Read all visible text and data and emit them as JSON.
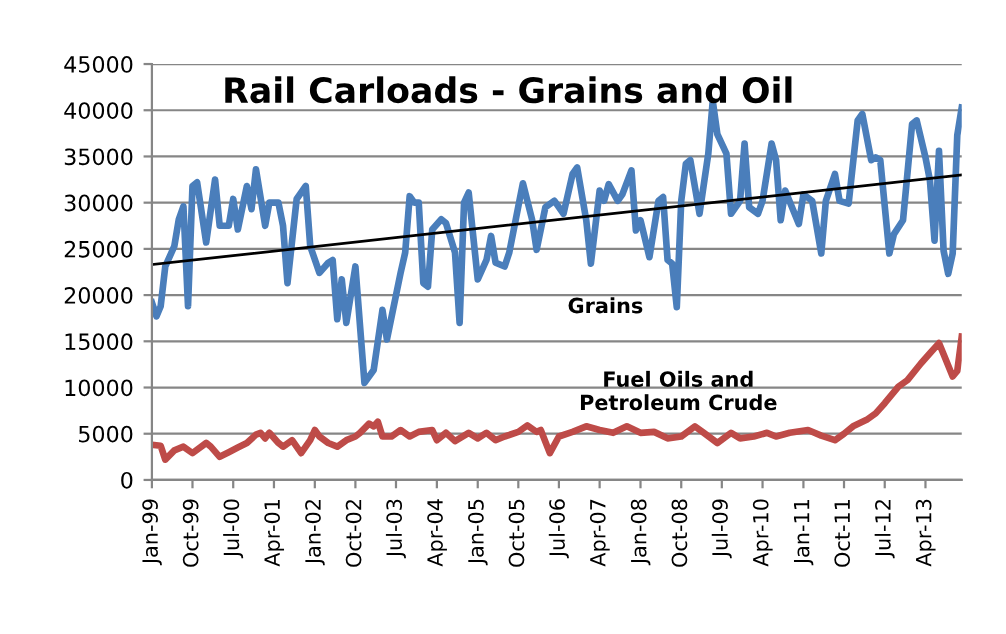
{
  "chart_data": {
    "type": "line",
    "title": "Rail Carloads - Grains and Oil",
    "xlim": [
      "1999-01",
      "2013-12"
    ],
    "xticks": [
      {
        "value": "1999-01",
        "label": "Jan-99"
      },
      {
        "value": "1999-10",
        "label": "Oct-99"
      },
      {
        "value": "2000-07",
        "label": "Jul-00"
      },
      {
        "value": "2001-04",
        "label": "Apr-01"
      },
      {
        "value": "2002-01",
        "label": "Jan-02"
      },
      {
        "value": "2002-10",
        "label": "Oct-02"
      },
      {
        "value": "2003-07",
        "label": "Jul-03"
      },
      {
        "value": "2004-04",
        "label": "Apr-04"
      },
      {
        "value": "2005-01",
        "label": "Jan-05"
      },
      {
        "value": "2005-10",
        "label": "Oct-05"
      },
      {
        "value": "2006-07",
        "label": "Jul-06"
      },
      {
        "value": "2007-04",
        "label": "Apr-07"
      },
      {
        "value": "2008-01",
        "label": "Jan-08"
      },
      {
        "value": "2008-10",
        "label": "Oct-08"
      },
      {
        "value": "2009-07",
        "label": "Jul-09"
      },
      {
        "value": "2010-04",
        "label": "Apr-10"
      },
      {
        "value": "2011-01",
        "label": "Jan-11"
      },
      {
        "value": "2011-10",
        "label": "Oct-11"
      },
      {
        "value": "2012-07",
        "label": "Jul-12"
      },
      {
        "value": "2013-04",
        "label": "Apr-13"
      }
    ],
    "ylim": [
      0,
      45000
    ],
    "yticks": [
      0,
      5000,
      10000,
      15000,
      20000,
      25000,
      30000,
      35000,
      40000,
      45000
    ],
    "grid": "y",
    "legend": false,
    "line_style": "solid",
    "marker": "none",
    "series": [
      {
        "name": "Grains",
        "color": "#4a7ebb",
        "x": [
          "1999-01",
          "1999-02",
          "1999-03",
          "1999-04",
          "1999-06",
          "1999-07",
          "1999-08",
          "1999-09",
          "1999-10",
          "1999-11",
          "2000-01",
          "2000-03",
          "2000-04",
          "2000-06",
          "2000-07",
          "2000-08",
          "2000-10",
          "2000-11",
          "2000-12",
          "2001-02",
          "2001-03",
          "2001-05",
          "2001-06",
          "2001-07",
          "2001-09",
          "2001-11",
          "2001-12",
          "2002-02",
          "2002-04",
          "2002-05",
          "2002-06",
          "2002-07",
          "2002-08",
          "2002-10",
          "2002-12",
          "2003-02",
          "2003-04",
          "2003-05",
          "2003-08",
          "2003-09",
          "2003-10",
          "2003-11",
          "2003-12",
          "2004-01",
          "2004-02",
          "2004-03",
          "2004-05",
          "2004-06",
          "2004-08",
          "2004-09",
          "2004-10",
          "2004-11",
          "2005-01",
          "2005-03",
          "2005-04",
          "2005-05",
          "2005-07",
          "2005-08",
          "2005-10",
          "2005-11",
          "2006-01",
          "2006-02",
          "2006-04",
          "2006-06",
          "2006-08",
          "2006-10",
          "2006-11",
          "2007-01",
          "2007-02",
          "2007-04",
          "2007-05",
          "2007-06",
          "2007-08",
          "2007-09",
          "2007-11",
          "2007-12",
          "2008-01",
          "2008-03",
          "2008-05",
          "2008-06",
          "2008-07",
          "2008-08",
          "2008-09",
          "2008-10",
          "2008-11",
          "2008-12",
          "2009-02",
          "2009-04",
          "2009-05",
          "2009-06",
          "2009-08",
          "2009-09",
          "2009-11",
          "2009-12",
          "2010-01",
          "2010-03",
          "2010-04",
          "2010-06",
          "2010-07",
          "2010-08",
          "2010-09",
          "2010-12",
          "2011-01",
          "2011-03",
          "2011-05",
          "2011-06",
          "2011-08",
          "2011-09",
          "2011-11",
          "2012-01",
          "2012-02",
          "2012-04",
          "2012-05",
          "2012-06",
          "2012-08",
          "2012-09",
          "2012-11",
          "2013-01",
          "2013-02",
          "2013-04",
          "2013-05",
          "2013-06",
          "2013-07",
          "2013-08",
          "2013-09",
          "2013-10",
          "2013-11",
          "2013-12"
        ],
        "values": [
          19200,
          17700,
          18800,
          23100,
          25300,
          28200,
          29600,
          18800,
          31800,
          32200,
          25700,
          32500,
          27500,
          27500,
          30400,
          27100,
          31800,
          29300,
          33600,
          27500,
          30000,
          30000,
          27500,
          21300,
          30400,
          31800,
          25300,
          22400,
          23500,
          23800,
          17400,
          21700,
          17000,
          23100,
          10500,
          11900,
          18400,
          15200,
          22400,
          24600,
          30700,
          30000,
          30000,
          21300,
          20900,
          27100,
          28200,
          27800,
          24600,
          17000,
          30000,
          31100,
          21700,
          23800,
          26400,
          23500,
          23100,
          24600,
          29600,
          32100,
          28200,
          24900,
          29500,
          30200,
          28800,
          33100,
          33800,
          28100,
          23400,
          31300,
          30200,
          32000,
          30200,
          30900,
          33500,
          27000,
          28100,
          24100,
          30200,
          30600,
          23800,
          23400,
          18700,
          30200,
          34200,
          34600,
          28800,
          35300,
          41000,
          37400,
          35300,
          28800,
          30200,
          36400,
          29500,
          28800,
          30200,
          36400,
          34600,
          28100,
          31300,
          27700,
          30900,
          30200,
          24500,
          30200,
          33100,
          30200,
          29900,
          38900,
          39600,
          34600,
          34900,
          34600,
          24500,
          26600,
          28100,
          38500,
          38900,
          34900,
          32400,
          25900,
          35600,
          24800,
          22300,
          24500,
          37300,
          40300
        ]
      },
      {
        "name": "Fuel Oils and\nPetroleum Crude",
        "color": "#be4b48",
        "x": [
          "1999-01",
          "1999-03",
          "1999-04",
          "1999-06",
          "1999-08",
          "1999-10",
          "2000-01",
          "2000-02",
          "2000-04",
          "2000-06",
          "2000-08",
          "2000-10",
          "2000-12",
          "2001-01",
          "2001-02",
          "2001-03",
          "2001-05",
          "2001-06",
          "2001-08",
          "2001-10",
          "2001-12",
          "2002-01",
          "2002-02",
          "2002-04",
          "2002-06",
          "2002-08",
          "2002-10",
          "2002-11",
          "2003-01",
          "2003-02",
          "2003-03",
          "2003-04",
          "2003-06",
          "2003-08",
          "2003-10",
          "2003-12",
          "2004-03",
          "2004-04",
          "2004-06",
          "2004-08",
          "2004-11",
          "2005-01",
          "2005-03",
          "2005-05",
          "2005-07",
          "2005-10",
          "2005-12",
          "2006-02",
          "2006-03",
          "2006-05",
          "2006-07",
          "2006-10",
          "2007-01",
          "2007-04",
          "2007-07",
          "2007-10",
          "2008-01",
          "2008-04",
          "2008-07",
          "2008-10",
          "2009-01",
          "2009-03",
          "2009-06",
          "2009-09",
          "2009-11",
          "2010-02",
          "2010-05",
          "2010-07",
          "2010-10",
          "2011-02",
          "2011-05",
          "2011-08",
          "2011-10",
          "2011-12",
          "2012-03",
          "2012-05",
          "2012-07",
          "2012-10",
          "2012-12",
          "2013-03",
          "2013-05",
          "2013-07",
          "2013-08",
          "2013-10",
          "2013-11",
          "2013-12"
        ],
        "values": [
          3800,
          3700,
          2200,
          3200,
          3600,
          2900,
          4000,
          3600,
          2500,
          3000,
          3500,
          4000,
          4900,
          5100,
          4500,
          5100,
          4000,
          3600,
          4300,
          2900,
          4300,
          5400,
          4700,
          4000,
          3600,
          4300,
          4700,
          5100,
          6100,
          5800,
          6300,
          4700,
          4700,
          5400,
          4700,
          5200,
          5400,
          4300,
          5100,
          4200,
          5100,
          4500,
          5100,
          4300,
          4700,
          5200,
          5900,
          5200,
          5400,
          2900,
          4700,
          5200,
          5800,
          5400,
          5100,
          5800,
          5100,
          5200,
          4500,
          4700,
          5800,
          5100,
          4000,
          5100,
          4500,
          4700,
          5100,
          4700,
          5100,
          5400,
          4800,
          4300,
          5000,
          5800,
          6500,
          7200,
          8300,
          10100,
          10800,
          12600,
          13700,
          14800,
          13600,
          11200,
          11800,
          15500
        ]
      },
      {
        "type": "line",
        "color": "#000000",
        "x": [
          "1999-01",
          "2013-12"
        ],
        "values": [
          23300,
          33000
        ]
      }
    ]
  }
}
